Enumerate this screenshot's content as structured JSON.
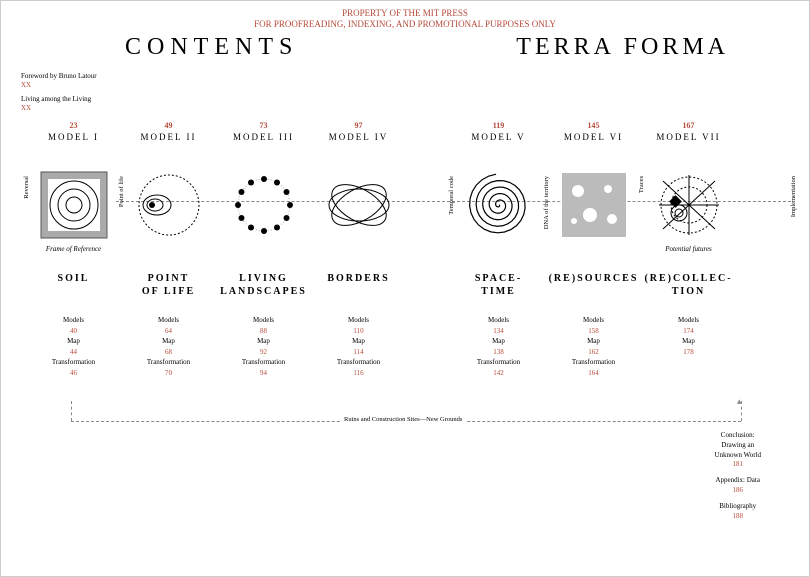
{
  "disclaimer": {
    "line1": "PROPERTY OF THE MIT PRESS",
    "line2": "FOR PROOFREADING, INDEXING, AND PROMOTIONAL PURPOSES ONLY"
  },
  "headings": {
    "left": "CONTENTS",
    "right": "TERRA FORMA"
  },
  "foreword": {
    "l1": "Foreword by Bruno Latour",
    "p1": "XX",
    "l2": "Living among the Living",
    "p2": "XX"
  },
  "models": [
    {
      "page": "23",
      "label": "MODEL I",
      "title": "SOIL",
      "caption": "Frame of Reference",
      "side": "Reversal",
      "sub": {
        "models": "40",
        "map": "44",
        "trans": "46"
      }
    },
    {
      "page": "49",
      "label": "MODEL II",
      "title": "POINT\nOF LIFE",
      "caption": "",
      "side": "Point of life",
      "sub": {
        "models": "64",
        "map": "68",
        "trans": "70"
      }
    },
    {
      "page": "73",
      "label": "MODEL III",
      "title": "LIVING\nLANDSCAPES",
      "caption": "",
      "side": "",
      "sub": {
        "models": "88",
        "map": "92",
        "trans": "94"
      }
    },
    {
      "page": "97",
      "label": "MODEL IV",
      "title": "BORDERS",
      "caption": "",
      "side": "",
      "sub": {
        "models": "110",
        "map": "114",
        "trans": "116"
      }
    },
    {
      "page": "119",
      "label": "MODEL V",
      "title": "SPACE-\nTIME",
      "caption": "",
      "side": "Temporal code",
      "sub": {
        "models": "134",
        "map": "138",
        "trans": "142"
      }
    },
    {
      "page": "145",
      "label": "MODEL VI",
      "title": "(RE)SOURCES",
      "caption": "",
      "side": "DNA of the territory",
      "sub": {
        "models": "158",
        "map": "162",
        "trans": "164"
      }
    },
    {
      "page": "167",
      "label": "MODEL VII",
      "title": "(RE)COLLEC-\nTION",
      "caption": "Potential futures",
      "side": "Traces",
      "sub": {
        "models": "174",
        "map": "178",
        "trans": ""
      }
    }
  ],
  "sub_labels": {
    "models": "Models",
    "map": "Map",
    "trans": "Transformation"
  },
  "ruins": "Ruins and Construction Sites—New Grounds",
  "implementation": "Implementation",
  "back_matter": [
    {
      "t": "Conclusion:\nDrawing an\nUnknown World",
      "p": "181"
    },
    {
      "t": "Appendix: Data",
      "p": "186"
    },
    {
      "t": "Bibliography",
      "p": "188"
    }
  ],
  "colors": {
    "accent": "#b54a3a",
    "line": "#888",
    "text": "#000"
  }
}
